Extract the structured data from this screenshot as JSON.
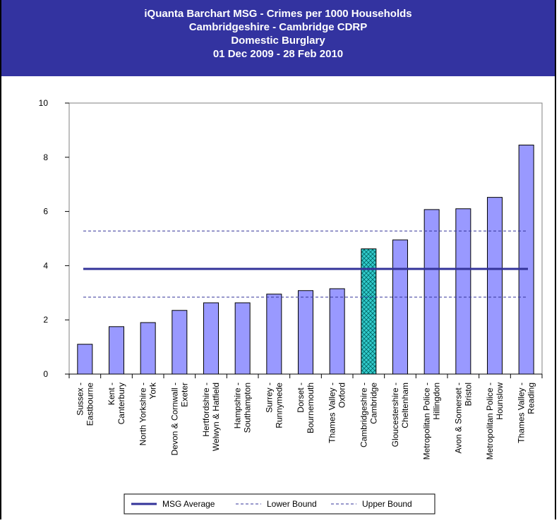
{
  "header": {
    "line1": "iQuanta Barchart MSG - Crimes per 1000 Households",
    "line2": "Cambridgeshire - Cambridge CDRP",
    "line3": "Domestic Burglary",
    "line4": "01 Dec 2009 - 28 Feb 2010"
  },
  "chart_data": {
    "type": "bar",
    "categories": [
      [
        "Sussex -",
        "Eastbourne"
      ],
      [
        "Kent -",
        "Canterbury"
      ],
      [
        "North Yorkshire -",
        "York"
      ],
      [
        "Devon & Cornwall -",
        "Exeter"
      ],
      [
        "Hertfordshire -",
        "Welwyn & Hatfield"
      ],
      [
        "Hampshire -",
        "Southampton"
      ],
      [
        "Surrey -",
        "Runnymede"
      ],
      [
        "Dorset -",
        "Bournemouth"
      ],
      [
        "Thames Valley -",
        "Oxford"
      ],
      [
        "Cambridgeshire -",
        "Cambridge"
      ],
      [
        "Gloucestershire -",
        "Cheltenham"
      ],
      [
        "Metropolitan Police -",
        "Hillingdon"
      ],
      [
        "Avon & Somerset -",
        "Bristol"
      ],
      [
        "Metropolitan Police -",
        "Hounslow"
      ],
      [
        "Thames Valley -",
        "Reading"
      ]
    ],
    "values": [
      1.1,
      1.75,
      1.9,
      2.35,
      2.63,
      2.63,
      2.95,
      3.08,
      3.15,
      4.62,
      4.95,
      6.07,
      6.1,
      6.52,
      8.45
    ],
    "highlight_index": 9,
    "ylim": [
      0,
      10
    ],
    "yticks": [
      "0",
      "2",
      "4",
      "6",
      "8",
      "10"
    ],
    "msg_average": 3.88,
    "lower_bound": 2.84,
    "upper_bound": 5.28,
    "bar_color": "#9999ff",
    "highlight_color": "#33cccc",
    "line_color": "#333399",
    "legend": [
      "MSG Average",
      "Lower Bound",
      "Upper Bound"
    ]
  }
}
